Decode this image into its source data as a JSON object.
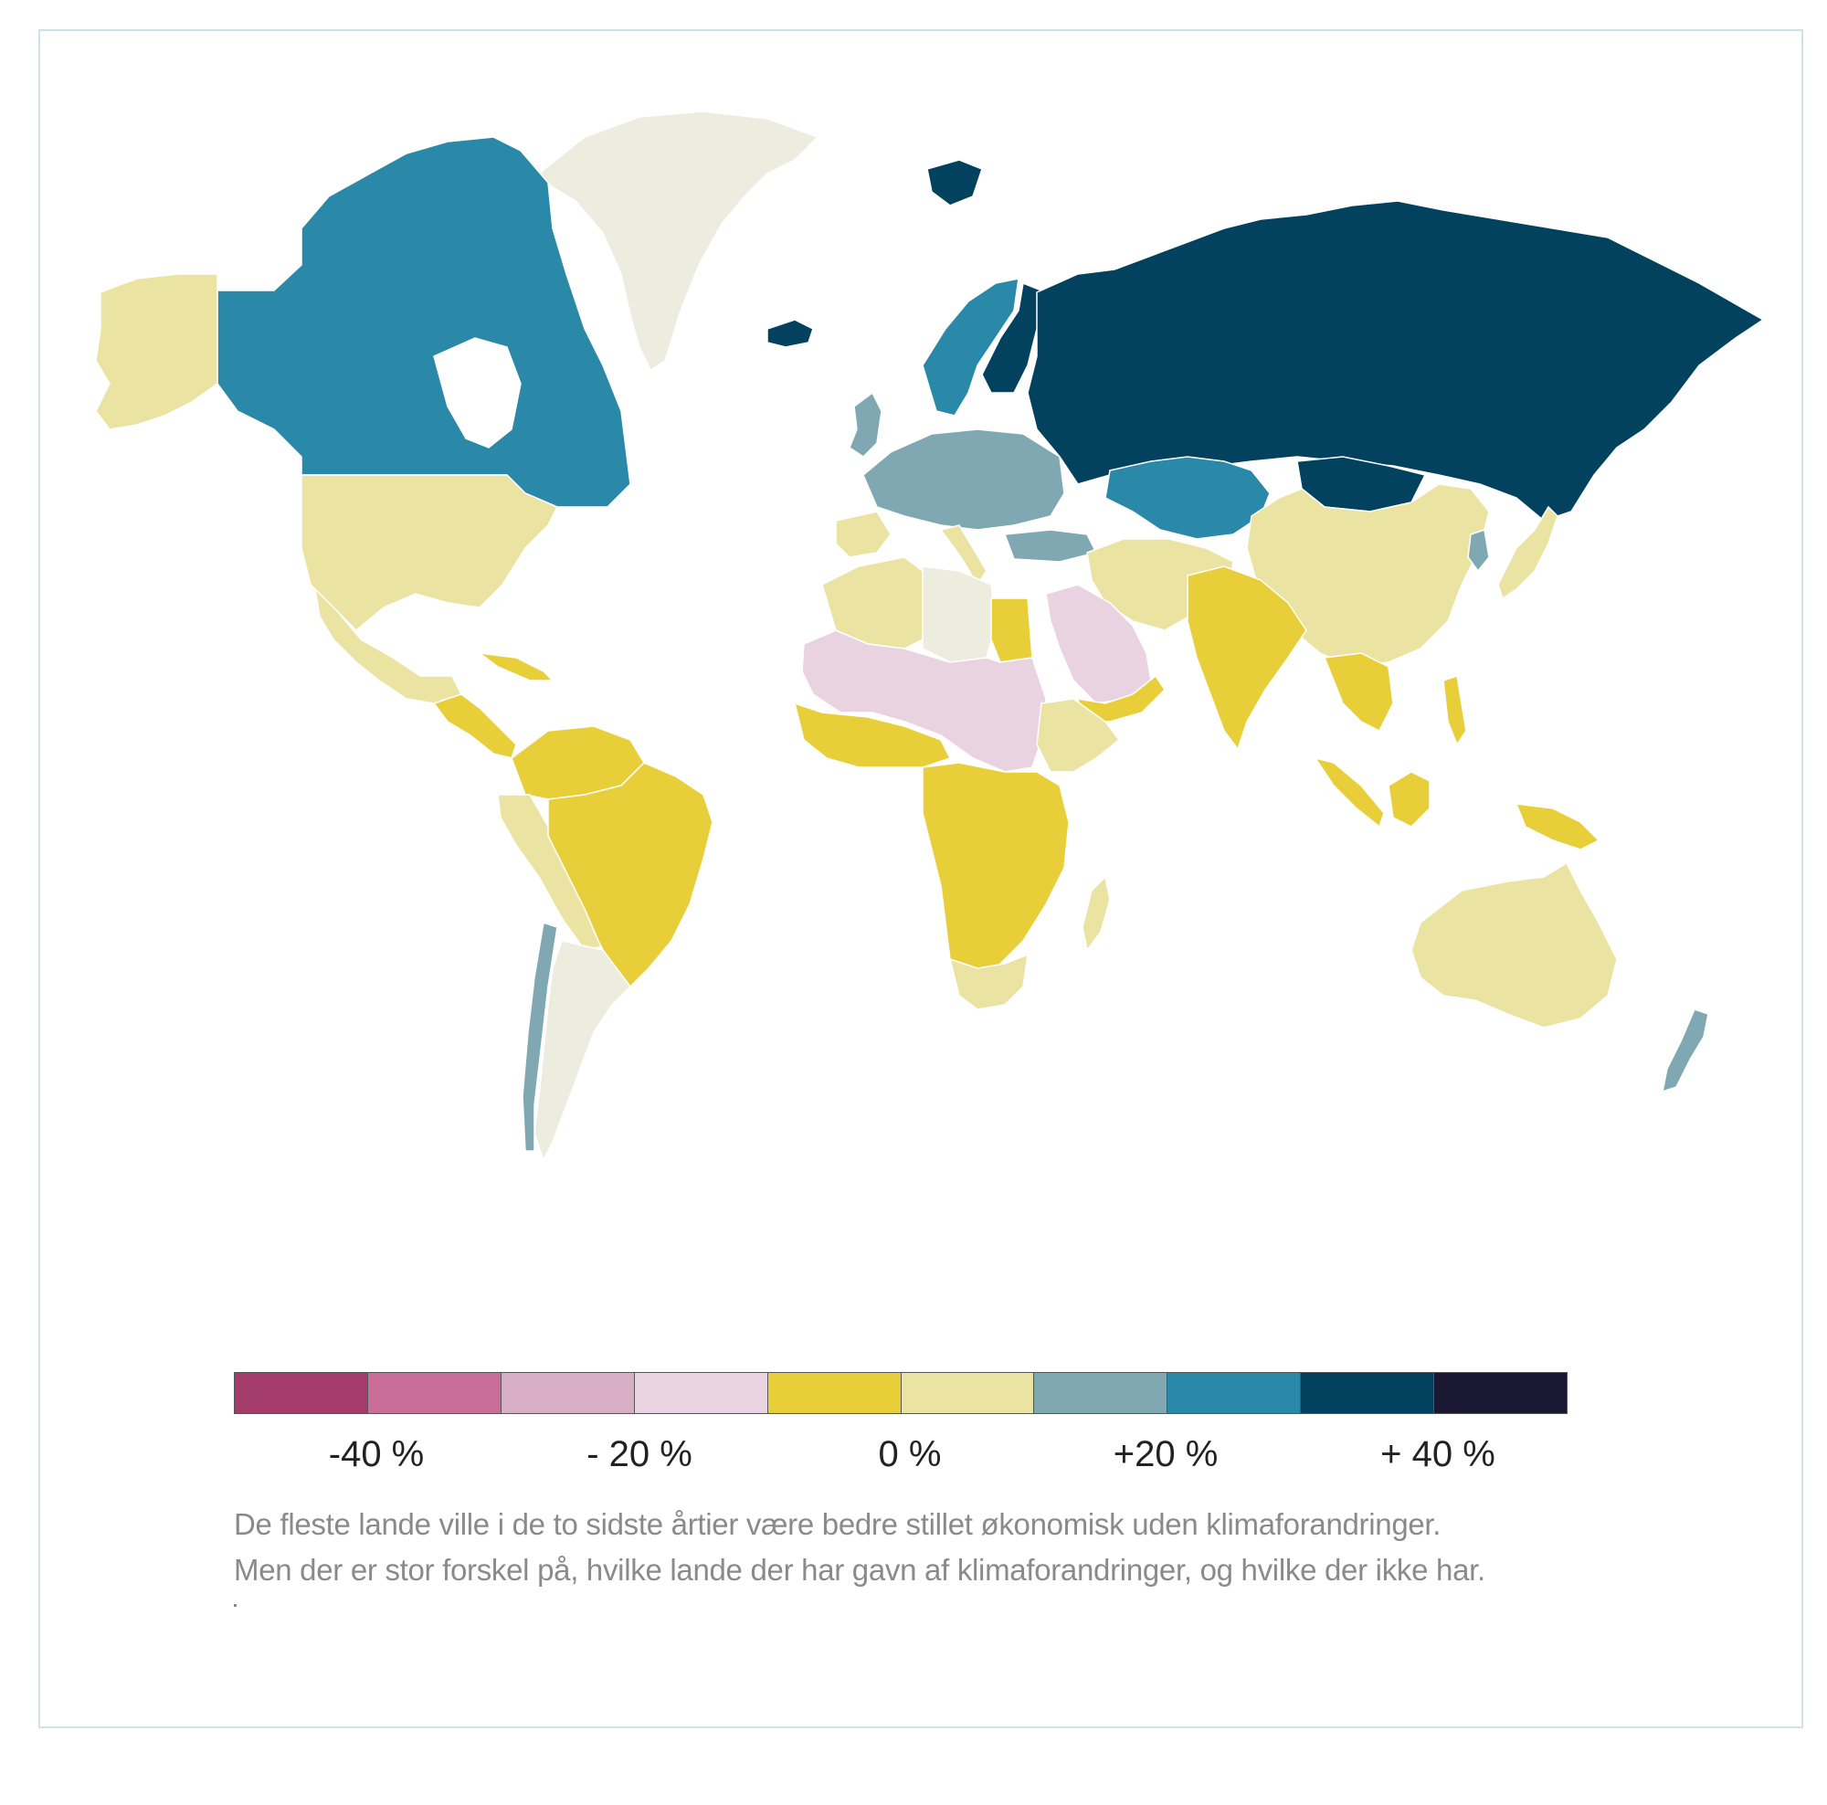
{
  "colors": {
    "frame": "#cfe1ea",
    "land_default": "#eae3a1",
    "ocean": "#ffffff",
    "border": "#ffffff"
  },
  "legend": {
    "swatches": [
      "#a33b6b",
      "#c96e99",
      "#d8adc6",
      "#ead3e0",
      "#e8cf3a",
      "#eae3a1",
      "#80a8b3",
      "#2a88a8",
      "#02425f",
      "#1a1732"
    ],
    "ticks": [
      "-40 %",
      "- 20 %",
      "0 %",
      "+20 %",
      "+ 40 %"
    ]
  },
  "caption": {
    "line1": "De fleste lande ville i de to sidste årtier være bedre stillet økonomisk uden klimaforandringer.",
    "line2": "Men der er stor forskel på, hvilke lande der har gavn af klimaforandringer, og hvilke der ikke har.",
    "line3": "."
  },
  "regions": [
    {
      "name": "greenland",
      "color": "#ececdf"
    },
    {
      "name": "canada",
      "color": "#2a88a8"
    },
    {
      "name": "alaska",
      "color": "#eae3a1"
    },
    {
      "name": "usa",
      "color": "#eae3a1"
    },
    {
      "name": "mexico",
      "color": "#eae3a1"
    },
    {
      "name": "central-america",
      "color": "#e8cf3a"
    },
    {
      "name": "cuba",
      "color": "#e8cf3a"
    },
    {
      "name": "brazil",
      "color": "#e8cf3a"
    },
    {
      "name": "northern-south-america",
      "color": "#e8cf3a"
    },
    {
      "name": "andes",
      "color": "#eae3a1"
    },
    {
      "name": "argentina",
      "color": "#ececdf"
    },
    {
      "name": "chile",
      "color": "#80a8b3"
    },
    {
      "name": "iceland",
      "color": "#02425f"
    },
    {
      "name": "svalbard",
      "color": "#02425f"
    },
    {
      "name": "scandinavia",
      "color": "#2a88a8"
    },
    {
      "name": "finland",
      "color": "#02425f"
    },
    {
      "name": "uk-ireland",
      "color": "#80a8b3"
    },
    {
      "name": "western-europe",
      "color": "#80a8b3"
    },
    {
      "name": "iberia",
      "color": "#eae3a1"
    },
    {
      "name": "italy",
      "color": "#eae3a1"
    },
    {
      "name": "turkey",
      "color": "#80a8b3"
    },
    {
      "name": "russia",
      "color": "#02425f"
    },
    {
      "name": "kazakhstan",
      "color": "#2a88a8"
    },
    {
      "name": "mongolia",
      "color": "#02425f"
    },
    {
      "name": "china",
      "color": "#eae3a1"
    },
    {
      "name": "middle-east",
      "color": "#eae3a1"
    },
    {
      "name": "arabia",
      "color": "#ead3e0"
    },
    {
      "name": "yemen-oman",
      "color": "#e8cf3a"
    },
    {
      "name": "india",
      "color": "#e8cf3a"
    },
    {
      "name": "southeast-asia",
      "color": "#e8cf3a"
    },
    {
      "name": "japan",
      "color": "#eae3a1"
    },
    {
      "name": "korea",
      "color": "#80a8b3"
    },
    {
      "name": "sumatra",
      "color": "#e8cf3a"
    },
    {
      "name": "borneo",
      "color": "#e8cf3a"
    },
    {
      "name": "new-guinea",
      "color": "#e8cf3a"
    },
    {
      "name": "philippines",
      "color": "#e8cf3a"
    },
    {
      "name": "north-africa",
      "color": "#eae3a1"
    },
    {
      "name": "libya",
      "color": "#ececdf"
    },
    {
      "name": "egypt",
      "color": "#e8cf3a"
    },
    {
      "name": "sahel",
      "color": "#ead3e0"
    },
    {
      "name": "ethiopia",
      "color": "#eae3a1"
    },
    {
      "name": "west-africa",
      "color": "#e8cf3a"
    },
    {
      "name": "central-africa",
      "color": "#e8cf3a"
    },
    {
      "name": "south-africa",
      "color": "#eae3a1"
    },
    {
      "name": "madagascar",
      "color": "#eae3a1"
    },
    {
      "name": "australia",
      "color": "#eae3a1"
    },
    {
      "name": "new-zealand",
      "color": "#80a8b3"
    }
  ]
}
